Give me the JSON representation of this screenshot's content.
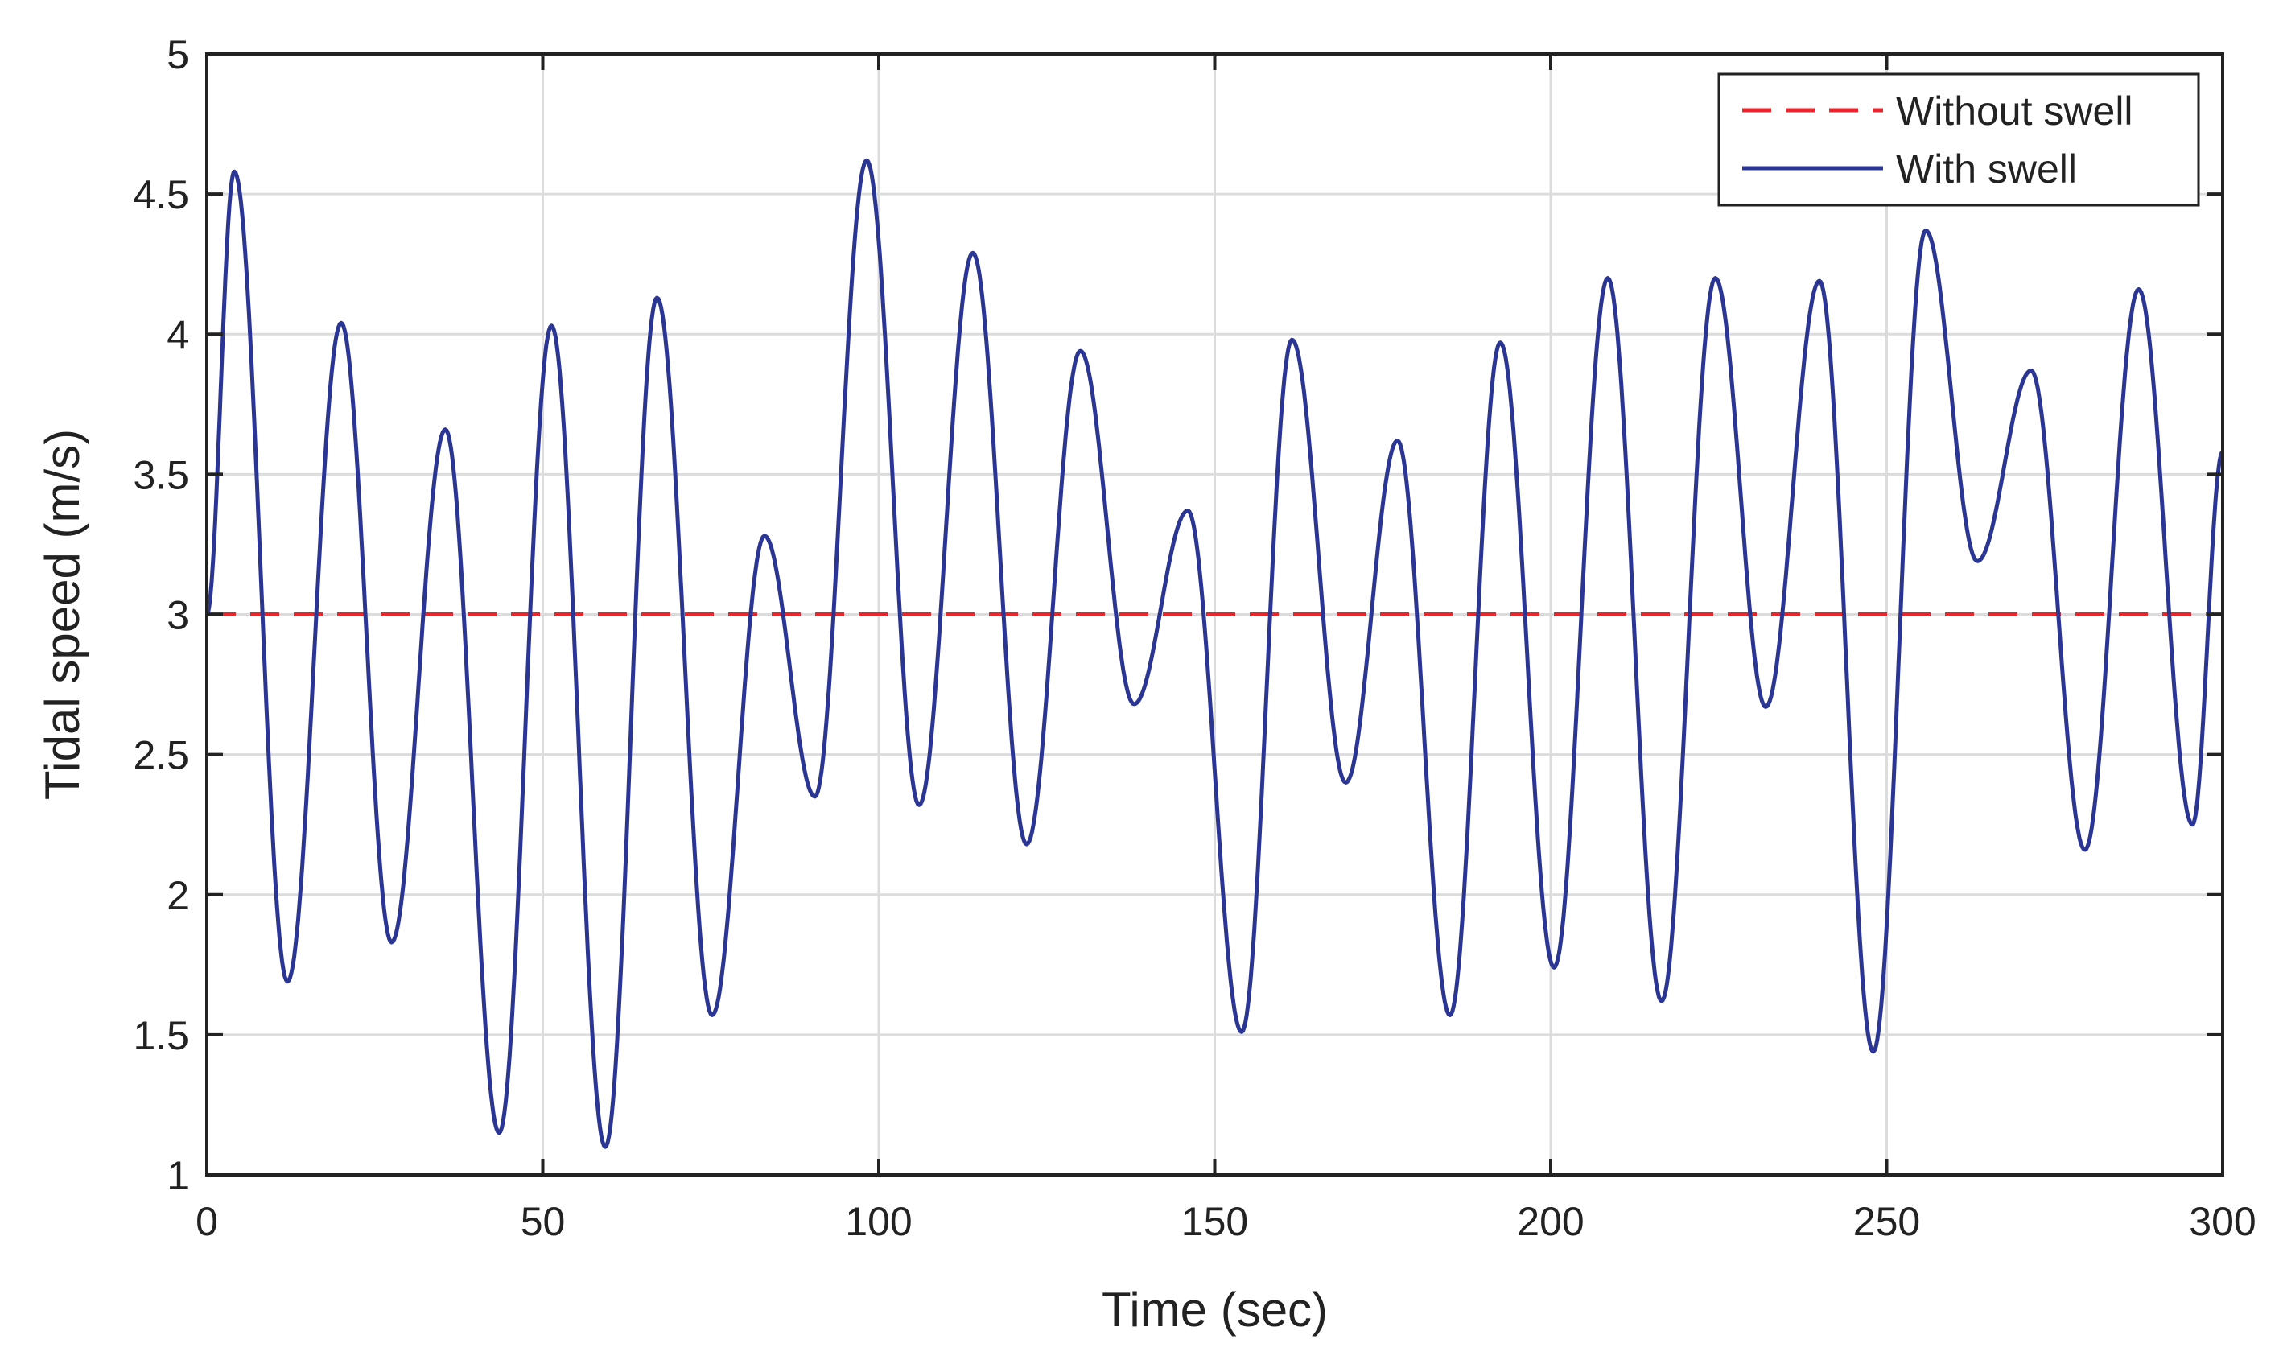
{
  "chart_data": {
    "type": "line",
    "title": "",
    "xlabel": "Time (sec)",
    "ylabel": "Tidal speed (m/s)",
    "xlim": [
      0,
      300
    ],
    "ylim": [
      1,
      5
    ],
    "xticks": [
      0,
      50,
      100,
      150,
      200,
      250,
      300
    ],
    "yticks": [
      1,
      1.5,
      2,
      2.5,
      3,
      3.5,
      4,
      4.5,
      5
    ],
    "xtick_labels": [
      "0",
      "50",
      "100",
      "150",
      "200",
      "250",
      "300"
    ],
    "ytick_labels": [
      "1",
      "1.5",
      "2",
      "2.5",
      "3",
      "3.5",
      "4",
      "4.5",
      "5"
    ],
    "grid": true,
    "legend_position": "top-right",
    "series": [
      {
        "name": "Without swell",
        "style": "dashed",
        "color": "#e8262d",
        "x": [
          0,
          300
        ],
        "y": [
          3,
          3
        ]
      },
      {
        "name": "With swell",
        "style": "solid",
        "color": "#2b3694",
        "peaks_x": [
          0,
          4.1,
          12,
          20,
          27.5,
          35.5,
          43.5,
          51.3,
          59.3,
          67,
          75.2,
          83,
          90.5,
          98.2,
          106,
          114,
          122,
          130,
          138,
          146,
          154,
          161.5,
          169.5,
          177.2,
          185,
          192.5,
          200.5,
          208.5,
          216.5,
          224.5,
          232,
          240,
          248,
          255.8,
          263.5,
          271.5,
          279.5,
          287.5,
          295.5,
          300
        ],
        "peaks_y": [
          3.0,
          4.58,
          1.69,
          4.04,
          1.83,
          3.66,
          1.15,
          4.03,
          1.1,
          4.13,
          1.57,
          3.28,
          2.35,
          4.62,
          2.32,
          4.29,
          2.18,
          3.94,
          2.68,
          3.37,
          1.51,
          3.98,
          2.4,
          3.62,
          1.57,
          3.97,
          1.74,
          4.2,
          1.62,
          4.2,
          2.67,
          4.19,
          1.44,
          4.37,
          3.19,
          3.87,
          2.16,
          4.16,
          2.25,
          3.58
        ]
      }
    ]
  }
}
